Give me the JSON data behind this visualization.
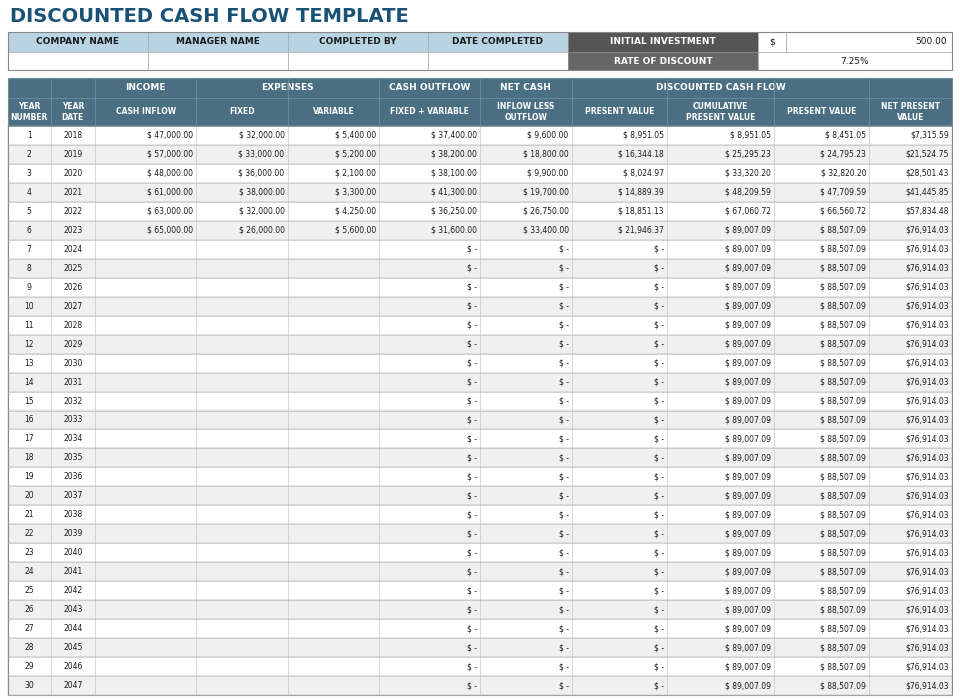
{
  "title": "DISCOUNTED CASH FLOW TEMPLATE",
  "title_color": "#1a5276",
  "title_fontsize": 14,
  "header_bg_light": "#b8d4e3",
  "header_bg_dark": "#4a6e82",
  "header_bg_darkest": "#555555",
  "row_bg_white": "#ffffff",
  "row_bg_alt": "#f0f0f0",
  "grid_color": "#bbbbbb",
  "text_dark": "#1a1a1a",
  "text_white": "#ffffff",
  "info_row": [
    "COMPANY NAME",
    "MANAGER NAME",
    "COMPLETED BY",
    "DATE COMPLETED"
  ],
  "initial_investment_label": "INITIAL INVESTMENT",
  "initial_investment_dollar": "$",
  "initial_investment_value": "500.00",
  "rate_of_discount_label": "RATE OF DISCOUNT",
  "rate_of_discount_value": "7.25%",
  "rows": [
    [
      1,
      2018,
      "$ 47,000.00",
      "$ 32,000.00",
      "$ 5,400.00",
      "$ 37,400.00",
      "$ 9,600.00",
      "$ 8,951.05",
      "$ 8,951.05",
      "$ 8,451.05",
      "$7,315.59"
    ],
    [
      2,
      2019,
      "$ 57,000.00",
      "$ 33,000.00",
      "$ 5,200.00",
      "$ 38,200.00",
      "$ 18,800.00",
      "$ 16,344.18",
      "$ 25,295.23",
      "$ 24,795.23",
      "$21,524.75"
    ],
    [
      3,
      2020,
      "$ 48,000.00",
      "$ 36,000.00",
      "$ 2,100.00",
      "$ 38,100.00",
      "$ 9,900.00",
      "$ 8,024.97",
      "$ 33,320.20",
      "$ 32,820.20",
      "$28,501.43"
    ],
    [
      4,
      2021,
      "$ 61,000.00",
      "$ 38,000.00",
      "$ 3,300.00",
      "$ 41,300.00",
      "$ 19,700.00",
      "$ 14,889.39",
      "$ 48,209.59",
      "$ 47,709.59",
      "$41,445.85"
    ],
    [
      5,
      2022,
      "$ 63,000.00",
      "$ 32,000.00",
      "$ 4,250.00",
      "$ 36,250.00",
      "$ 26,750.00",
      "$ 18,851.13",
      "$ 67,060.72",
      "$ 66,560.72",
      "$57,834.48"
    ],
    [
      6,
      2023,
      "$ 65,000.00",
      "$ 26,000.00",
      "$ 5,600.00",
      "$ 31,600.00",
      "$ 33,400.00",
      "$ 21,946.37",
      "$ 89,007.09",
      "$ 88,507.09",
      "$76,914.03"
    ],
    [
      7,
      2024,
      "",
      "",
      "",
      "$ -",
      "$ -",
      "$ -",
      "$ 89,007.09",
      "$ 88,507.09",
      "$76,914.03"
    ],
    [
      8,
      2025,
      "",
      "",
      "",
      "$ -",
      "$ -",
      "$ -",
      "$ 89,007.09",
      "$ 88,507.09",
      "$76,914.03"
    ],
    [
      9,
      2026,
      "",
      "",
      "",
      "$ -",
      "$ -",
      "$ -",
      "$ 89,007.09",
      "$ 88,507.09",
      "$76,914.03"
    ],
    [
      10,
      2027,
      "",
      "",
      "",
      "$ -",
      "$ -",
      "$ -",
      "$ 89,007.09",
      "$ 88,507.09",
      "$76,914.03"
    ],
    [
      11,
      2028,
      "",
      "",
      "",
      "$ -",
      "$ -",
      "$ -",
      "$ 89,007.09",
      "$ 88,507.09",
      "$76,914.03"
    ],
    [
      12,
      2029,
      "",
      "",
      "",
      "$ -",
      "$ -",
      "$ -",
      "$ 89,007.09",
      "$ 88,507.09",
      "$76,914.03"
    ],
    [
      13,
      2030,
      "",
      "",
      "",
      "$ -",
      "$ -",
      "$ -",
      "$ 89,007.09",
      "$ 88,507.09",
      "$76,914.03"
    ],
    [
      14,
      2031,
      "",
      "",
      "",
      "$ -",
      "$ -",
      "$ -",
      "$ 89,007.09",
      "$ 88,507.09",
      "$76,914.03"
    ],
    [
      15,
      2032,
      "",
      "",
      "",
      "$ -",
      "$ -",
      "$ -",
      "$ 89,007.09",
      "$ 88,507.09",
      "$76,914.03"
    ],
    [
      16,
      2033,
      "",
      "",
      "",
      "$ -",
      "$ -",
      "$ -",
      "$ 89,007.09",
      "$ 88,507.09",
      "$76,914.03"
    ],
    [
      17,
      2034,
      "",
      "",
      "",
      "$ -",
      "$ -",
      "$ -",
      "$ 89,007.09",
      "$ 88,507.09",
      "$76,914.03"
    ],
    [
      18,
      2035,
      "",
      "",
      "",
      "$ -",
      "$ -",
      "$ -",
      "$ 89,007.09",
      "$ 88,507.09",
      "$76,914.03"
    ],
    [
      19,
      2036,
      "",
      "",
      "",
      "$ -",
      "$ -",
      "$ -",
      "$ 89,007.09",
      "$ 88,507.09",
      "$76,914.03"
    ],
    [
      20,
      2037,
      "",
      "",
      "",
      "$ -",
      "$ -",
      "$ -",
      "$ 89,007.09",
      "$ 88,507.09",
      "$76,914.03"
    ],
    [
      21,
      2038,
      "",
      "",
      "",
      "$ -",
      "$ -",
      "$ -",
      "$ 89,007.09",
      "$ 88,507.09",
      "$76,914.03"
    ],
    [
      22,
      2039,
      "",
      "",
      "",
      "$ -",
      "$ -",
      "$ -",
      "$ 89,007.09",
      "$ 88,507.09",
      "$76,914.03"
    ],
    [
      23,
      2040,
      "",
      "",
      "",
      "$ -",
      "$ -",
      "$ -",
      "$ 89,007.09",
      "$ 88,507.09",
      "$76,914.03"
    ],
    [
      24,
      2041,
      "",
      "",
      "",
      "$ -",
      "$ -",
      "$ -",
      "$ 89,007.09",
      "$ 88,507.09",
      "$76,914.03"
    ],
    [
      25,
      2042,
      "",
      "",
      "",
      "$ -",
      "$ -",
      "$ -",
      "$ 89,007.09",
      "$ 88,507.09",
      "$76,914.03"
    ],
    [
      26,
      2043,
      "",
      "",
      "",
      "$ -",
      "$ -",
      "$ -",
      "$ 89,007.09",
      "$ 88,507.09",
      "$76,914.03"
    ],
    [
      27,
      2044,
      "",
      "",
      "",
      "$ -",
      "$ -",
      "$ -",
      "$ 89,007.09",
      "$ 88,507.09",
      "$76,914.03"
    ],
    [
      28,
      2045,
      "",
      "",
      "",
      "$ -",
      "$ -",
      "$ -",
      "$ 89,007.09",
      "$ 88,507.09",
      "$76,914.03"
    ],
    [
      29,
      2046,
      "",
      "",
      "",
      "$ -",
      "$ -",
      "$ -",
      "$ 89,007.09",
      "$ 88,507.09",
      "$76,914.03"
    ],
    [
      30,
      2047,
      "",
      "",
      "",
      "$ -",
      "$ -",
      "$ -",
      "$ 89,007.09",
      "$ 88,507.09",
      "$76,914.03"
    ]
  ]
}
